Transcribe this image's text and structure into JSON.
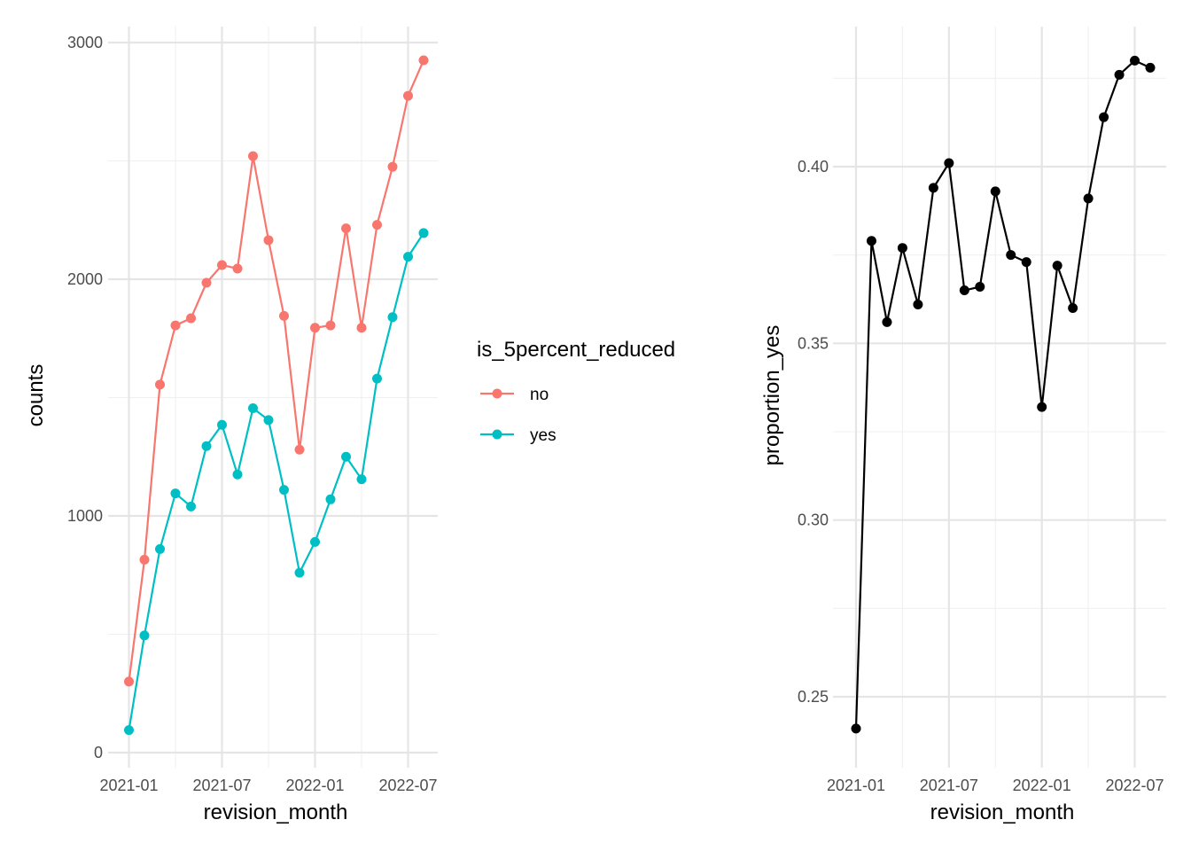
{
  "chart_data": [
    {
      "type": "line",
      "xlabel": "revision_month",
      "ylabel": "counts",
      "x": [
        "2021-01",
        "2021-02",
        "2021-03",
        "2021-04",
        "2021-05",
        "2021-06",
        "2021-07",
        "2021-08",
        "2021-09",
        "2021-10",
        "2021-11",
        "2021-12",
        "2022-01",
        "2022-02",
        "2022-03",
        "2022-04",
        "2022-05",
        "2022-06",
        "2022-07",
        "2022-08"
      ],
      "x_ticks": [
        "2021-01",
        "2021-07",
        "2022-01",
        "2022-07"
      ],
      "y_ticks": [
        0,
        1000,
        2000,
        3000
      ],
      "ylim": [
        0,
        3000
      ],
      "grid": true,
      "legend": {
        "title": "is_5percent_reduced",
        "position": "right"
      },
      "series": [
        {
          "name": "no",
          "color": "#F8766D",
          "values": [
            300,
            815,
            1555,
            1805,
            1835,
            1985,
            2060,
            2045,
            2520,
            2165,
            1845,
            1280,
            1795,
            1805,
            2215,
            1795,
            2230,
            2475,
            2775,
            2925
          ]
        },
        {
          "name": "yes",
          "color": "#00BFC4",
          "values": [
            95,
            495,
            860,
            1095,
            1040,
            1295,
            1385,
            1175,
            1455,
            1405,
            1110,
            760,
            890,
            1070,
            1250,
            1155,
            1580,
            1840,
            2095,
            2195
          ]
        }
      ]
    },
    {
      "type": "line",
      "xlabel": "revision_month",
      "ylabel": "proportion_yes",
      "x": [
        "2021-01",
        "2021-02",
        "2021-03",
        "2021-04",
        "2021-05",
        "2021-06",
        "2021-07",
        "2021-08",
        "2021-09",
        "2021-10",
        "2021-11",
        "2021-12",
        "2022-01",
        "2022-02",
        "2022-03",
        "2022-04",
        "2022-05",
        "2022-06",
        "2022-07",
        "2022-08"
      ],
      "x_ticks": [
        "2021-01",
        "2021-07",
        "2022-01",
        "2022-07"
      ],
      "y_ticks": [
        "0.25",
        "0.30",
        "0.35",
        "0.40"
      ],
      "ylim": [
        0.235,
        0.44
      ],
      "grid": true,
      "series": [
        {
          "color": "#000000",
          "values": [
            0.241,
            0.379,
            0.356,
            0.377,
            0.361,
            0.394,
            0.401,
            0.365,
            0.366,
            0.393,
            0.375,
            0.373,
            0.332,
            0.372,
            0.36,
            0.391,
            0.414,
            0.426,
            0.43,
            0.428
          ]
        }
      ]
    }
  ]
}
